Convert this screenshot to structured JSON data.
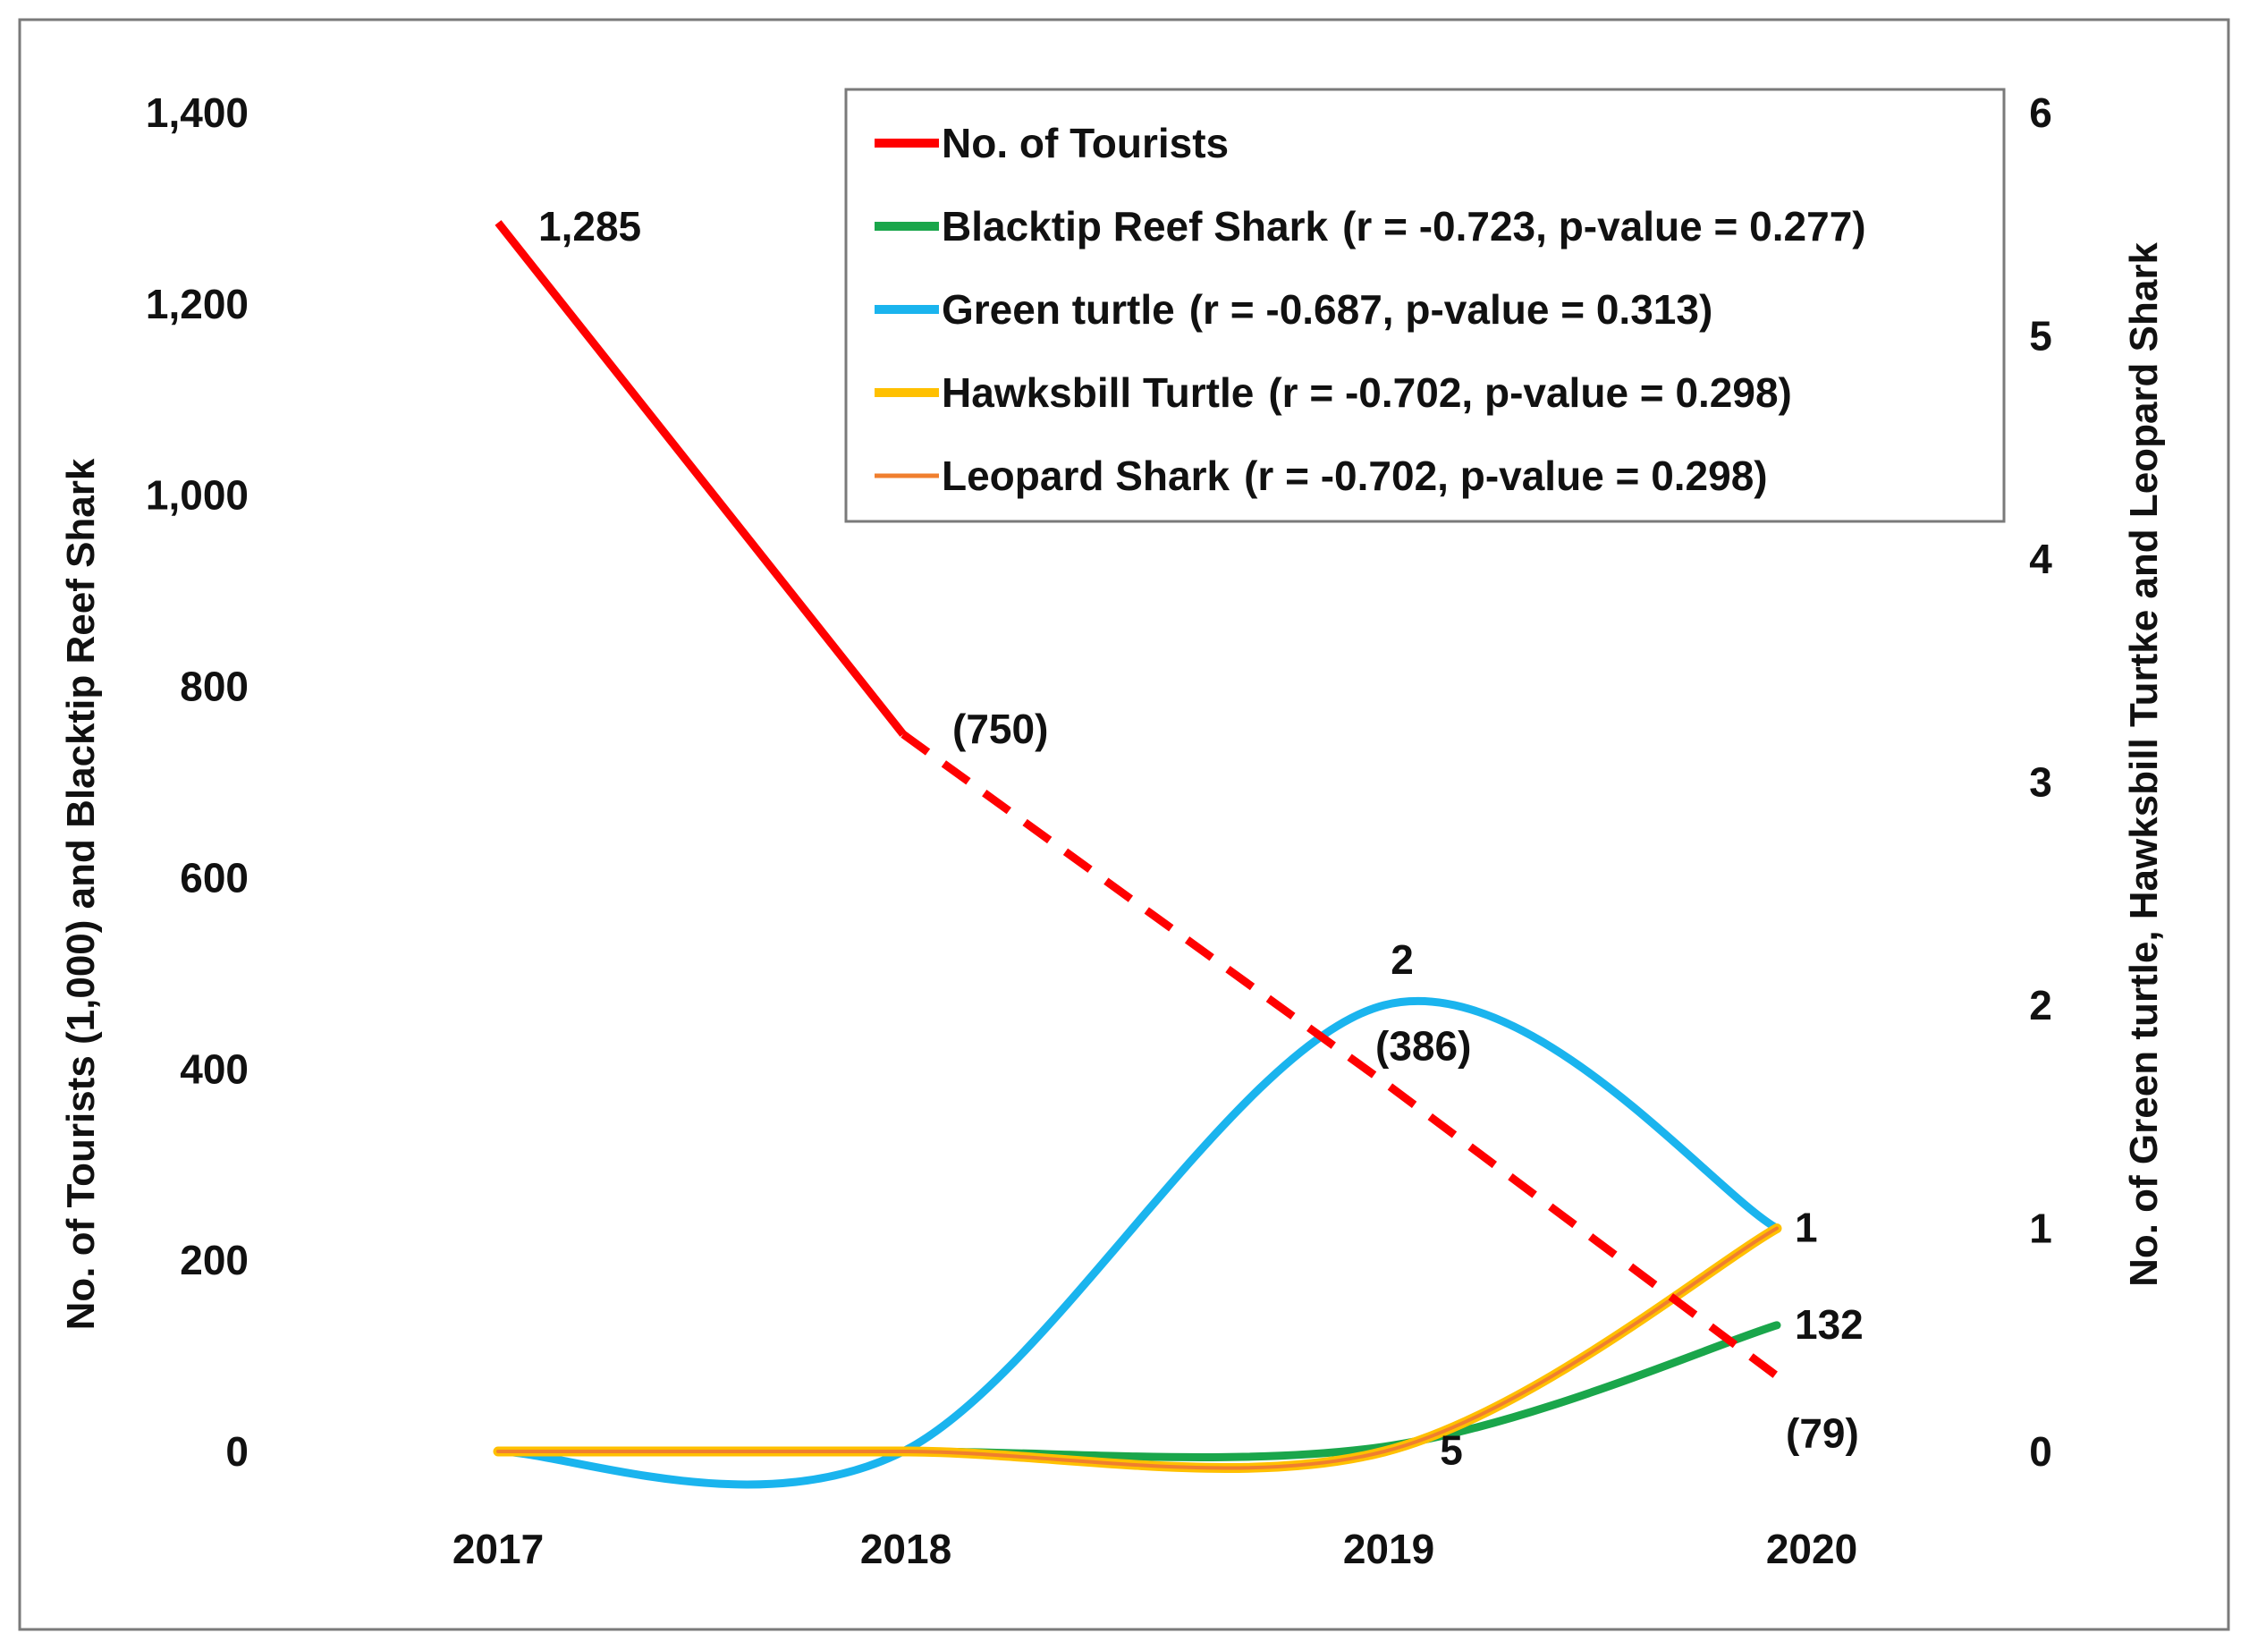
{
  "chart_data": {
    "type": "line",
    "x": [
      "2017",
      "2018",
      "2019",
      "2020"
    ],
    "left_axis": {
      "label": "No. of  Tourists (1,000) and Blacktip Reef Shark",
      "ylim": [
        0,
        1400
      ],
      "ticks": [
        "0",
        "200",
        "400",
        "600",
        "800",
        "1,000",
        "1,200",
        "1,400"
      ],
      "tick_values": [
        0,
        200,
        400,
        600,
        800,
        1000,
        1200,
        1400
      ]
    },
    "right_axis": {
      "label": "No. of Green turtle, Hawksbill Turtke and Leopard Shark",
      "ylim": [
        0,
        6
      ],
      "ticks": [
        "0",
        "1",
        "2",
        "3",
        "4",
        "5",
        "6"
      ],
      "tick_values": [
        0,
        1,
        2,
        3,
        4,
        5,
        6
      ]
    },
    "series": [
      {
        "key": "tourists",
        "name": "No. of Tourists",
        "axis": "left",
        "color": "#ff0000",
        "values": [
          1285,
          750,
          386,
          79
        ],
        "style": "solid-then-dashed",
        "dash_from_index": 1
      },
      {
        "key": "blacktip",
        "name": "Blacktip Reef Shark",
        "stats": "(r = -0.723, p-value = 0.277)",
        "axis": "left",
        "color": "#1aa64b",
        "values": [
          0,
          0,
          5,
          132
        ],
        "style": "smooth"
      },
      {
        "key": "green",
        "name": "Green turtle",
        "stats": "(r = -0.687, p-value = 0.313)",
        "axis": "right",
        "color": "#1ab4ee",
        "values": [
          0,
          0,
          2,
          1
        ],
        "style": "smooth"
      },
      {
        "key": "hawksbill",
        "name": "Hawksbill Turtle",
        "stats": "(r = -0.702, p-value = 0.298)",
        "axis": "right",
        "color": "#ffc000",
        "values": [
          0,
          0,
          0,
          1
        ],
        "style": "smooth"
      },
      {
        "key": "leopard",
        "name": "Leopard Shark",
        "stats": "(r = -0.702, p-value = 0.298)",
        "axis": "right",
        "color": "#f07f2e",
        "values": [
          0,
          0,
          0,
          1
        ],
        "style": "smooth"
      }
    ],
    "data_labels": [
      {
        "text": "1,285",
        "series": "tourists",
        "index": 0
      },
      {
        "text": "(750)",
        "series": "tourists",
        "index": 1
      },
      {
        "text": "(386)",
        "series": "tourists",
        "index": 2
      },
      {
        "text": "(79)",
        "series": "tourists",
        "index": 3
      },
      {
        "text": "2",
        "series": "green",
        "index": 2
      },
      {
        "text": "1",
        "series": "green",
        "index": 3
      },
      {
        "text": "5",
        "series": "blacktip",
        "index": 2
      },
      {
        "text": "132",
        "series": "blacktip",
        "index": 3
      }
    ],
    "legend_position": "top-right",
    "grid": false
  }
}
